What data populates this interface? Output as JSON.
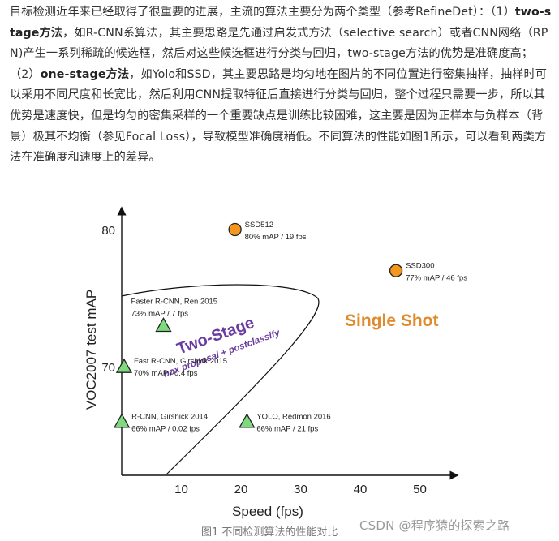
{
  "paragraph": {
    "p1": "目标检测近年来已经取得了很重要的进展，主流的算法主要分为两个类型（参考RefineDet）：（1）",
    "b1": "two-stage方法",
    "p2": "，如R-CNN系算法，其主要思路是先通过启发式方法（selective search）或者CNN网络（RPN)产生一系列稀疏的候选框，然后对这些候选框进行分类与回归，two-stage方法的优势是准确度高；（2）",
    "b2": "one-stage方法",
    "p3": "，如Yolo和SSD，其主要思路是均匀地在图片的不同位置进行密集抽样，抽样时可以采用不同尺度和长宽比，然后利用CNN提取特征后直接进行分类与回归，整个过程只需要一步，所以其优势是速度快，但是均匀的密集采样的一个重要缺点是训练比较困难，这主要是因为正样本与负样本（背景）极其不均衡（参见Focal Loss），导致模型准确度稍低。不同算法的性能如图1所示，可以看到两类方法在准确度和速度上的差异。"
  },
  "chart_data": {
    "type": "scatter",
    "title": "",
    "xlabel": "Speed (fps)",
    "ylabel": "VOC2007 test mAP",
    "xlim": [
      0,
      55
    ],
    "ylim": [
      64,
      82
    ],
    "x_ticks": [
      "10",
      "20",
      "30",
      "40",
      "50"
    ],
    "y_ticks": [
      "70",
      "80"
    ],
    "region_labels": {
      "two_stage": "Two-Stage",
      "two_stage_sub": "box proposal + postclassify",
      "single_shot": "Single Shot"
    },
    "colors": {
      "two_stage_marker": "#7ddb7d",
      "one_stage_marker": "#f5961e",
      "two_stage_text": "#6a3aa0",
      "single_shot_text": "#e08a2c"
    },
    "points": [
      {
        "name": "SSD512",
        "detail": "80% mAP / 19 fps",
        "x": 19,
        "y": 80,
        "group": "one-stage",
        "marker": "circle"
      },
      {
        "name": "SSD300",
        "detail": "77% mAP / 46 fps",
        "x": 46,
        "y": 77,
        "group": "one-stage",
        "marker": "circle"
      },
      {
        "name": "Faster R-CNN, Ren 2015",
        "detail": "73% mAP / 7 fps",
        "x": 7,
        "y": 73,
        "group": "two-stage",
        "marker": "triangle"
      },
      {
        "name": "Fast R-CNN, Girshick 2015",
        "detail": "70% mAP / 0.4 fps",
        "x": 0.4,
        "y": 70,
        "group": "two-stage",
        "marker": "triangle"
      },
      {
        "name": "R-CNN, Girshick 2014",
        "detail": "66% mAP / 0.02 fps",
        "x": 0.02,
        "y": 66,
        "group": "two-stage",
        "marker": "triangle"
      },
      {
        "name": "YOLO, Redmon 2016",
        "detail": "66% mAP / 21 fps",
        "x": 21,
        "y": 66,
        "group": "one-stage",
        "marker": "triangle"
      }
    ]
  },
  "caption": "图1 不同检测算法的性能对比",
  "watermark": "CSDN @程序猿的探索之路"
}
